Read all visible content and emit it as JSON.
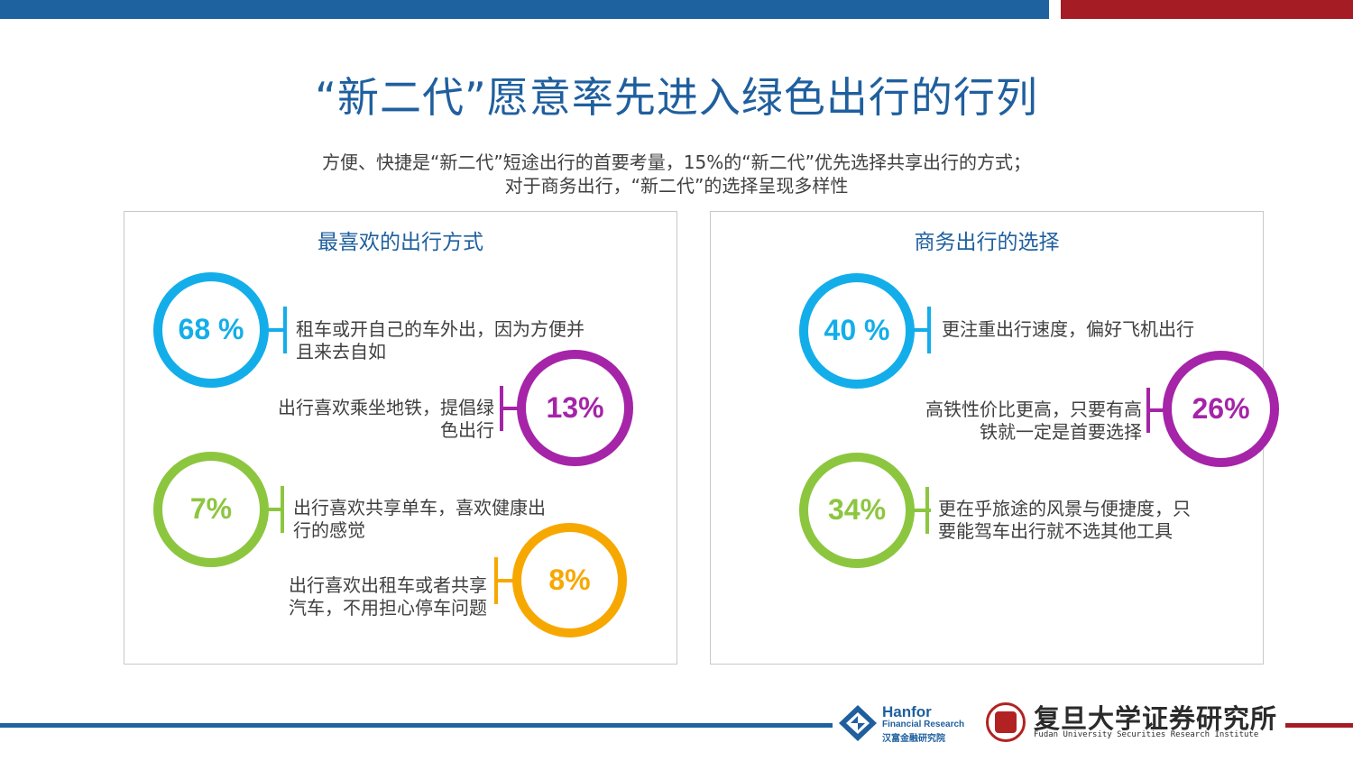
{
  "title": "“新二代”愿意率先进入绿色出行的行列",
  "subtitle": {
    "line1": "方便、快捷是“新二代”短途出行的首要考量，15%的“新二代”优先选择共享出行的方式；",
    "line2": "对于商务出行，“新二代”的选择呈现多样性"
  },
  "colors": {
    "blue_bar": "#1e62a0",
    "red_bar": "#a51c24",
    "title": "#1f5f9e",
    "cyan": "#13aeea",
    "purple": "#a524a8",
    "green": "#8cc63f",
    "orange": "#f7a800"
  },
  "left_panel": {
    "title": "最喜欢的出行方式",
    "items": [
      {
        "value": "68 %",
        "text_line1": "租车或开自己的车外出，因为方便并",
        "text_line2": "且来去自如",
        "color": "#13aeea",
        "percent": 68
      },
      {
        "value": "13%",
        "text_line1": "出行喜欢乘坐地铁，提倡绿",
        "text_line2": "色出行",
        "color": "#a524a8",
        "percent": 13
      },
      {
        "value": "7%",
        "text_line1": "出行喜欢共享单车，喜欢健康出",
        "text_line2": "行的感觉",
        "color": "#8cc63f",
        "percent": 7
      },
      {
        "value": "8%",
        "text_line1": "出行喜欢出租车或者共享",
        "text_line2": "汽车，不用担心停车问题",
        "color": "#f7a800",
        "percent": 8
      }
    ]
  },
  "right_panel": {
    "title": "商务出行的选择",
    "items": [
      {
        "value": "40 %",
        "text_line1": "更注重出行速度，偏好飞机出行",
        "text_line2": "",
        "color": "#13aeea",
        "percent": 40
      },
      {
        "value": "26%",
        "text_line1": "高铁性价比更高，只要有高",
        "text_line2": "铁就一定是首要选择",
        "color": "#a524a8",
        "percent": 26
      },
      {
        "value": "34%",
        "text_line1": "更在乎旅途的风景与便捷度，只",
        "text_line2": "要能驾车出行就不选其他工具",
        "color": "#8cc63f",
        "percent": 34
      }
    ]
  },
  "footer": {
    "hanfor_name": "Hanfor",
    "hanfor_sub": "Financial Research",
    "hanfor_cn": "汉富金融研究院",
    "fudan_cn": "复旦大学证券研究所",
    "fudan_en": "Fudan University Securities Research Institute"
  }
}
